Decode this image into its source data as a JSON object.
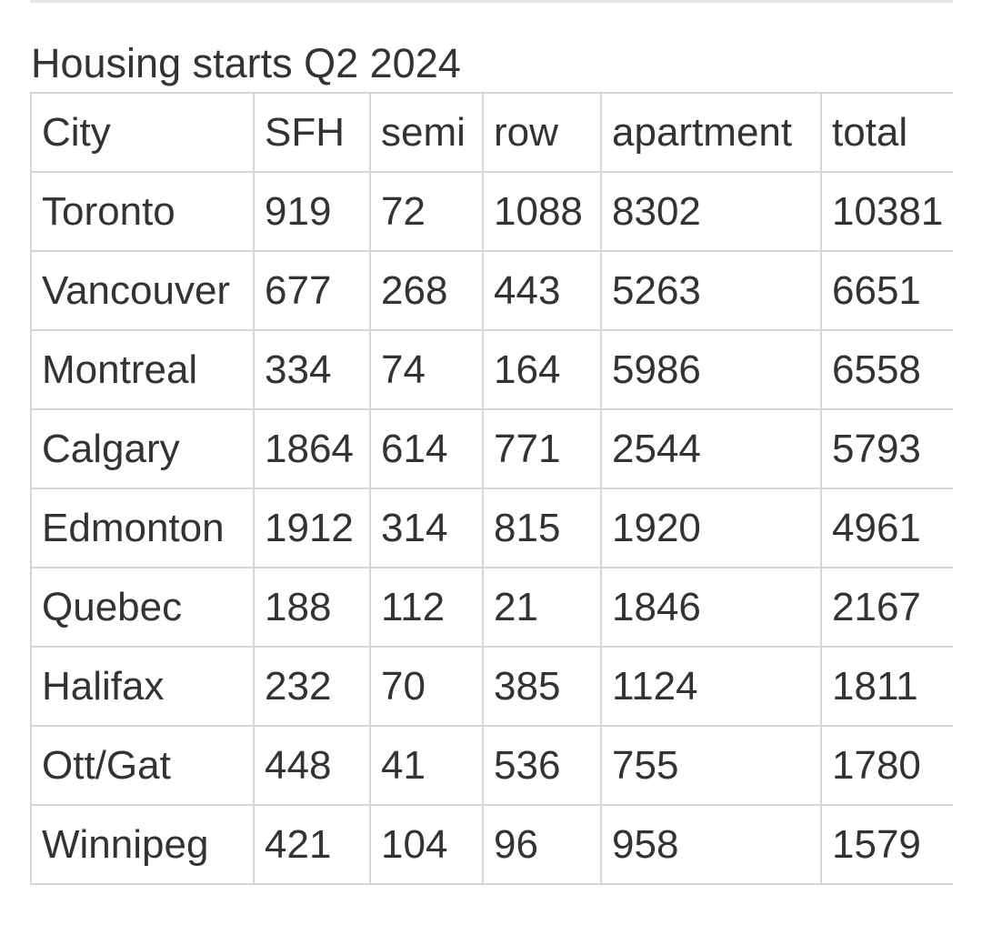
{
  "table": {
    "caption": "Housing starts Q2 2024",
    "header": [
      "City",
      "SFH",
      "semi",
      "row",
      "apartment",
      "total"
    ],
    "rows": [
      [
        "Toronto",
        919,
        72,
        1088,
        8302,
        10381
      ],
      [
        "Vancouver",
        677,
        268,
        443,
        5263,
        6651
      ],
      [
        "Montreal",
        334,
        74,
        164,
        5986,
        6558
      ],
      [
        "Calgary",
        1864,
        614,
        771,
        2544,
        5793
      ],
      [
        "Edmonton",
        1912,
        314,
        815,
        1920,
        4961
      ],
      [
        "Quebec",
        188,
        112,
        21,
        1846,
        2167
      ],
      [
        "Halifax",
        232,
        70,
        385,
        1124,
        1811
      ],
      [
        "Ott/Gat",
        448,
        41,
        536,
        755,
        1780
      ],
      [
        "Winnipeg",
        421,
        104,
        96,
        958,
        1579
      ]
    ]
  }
}
